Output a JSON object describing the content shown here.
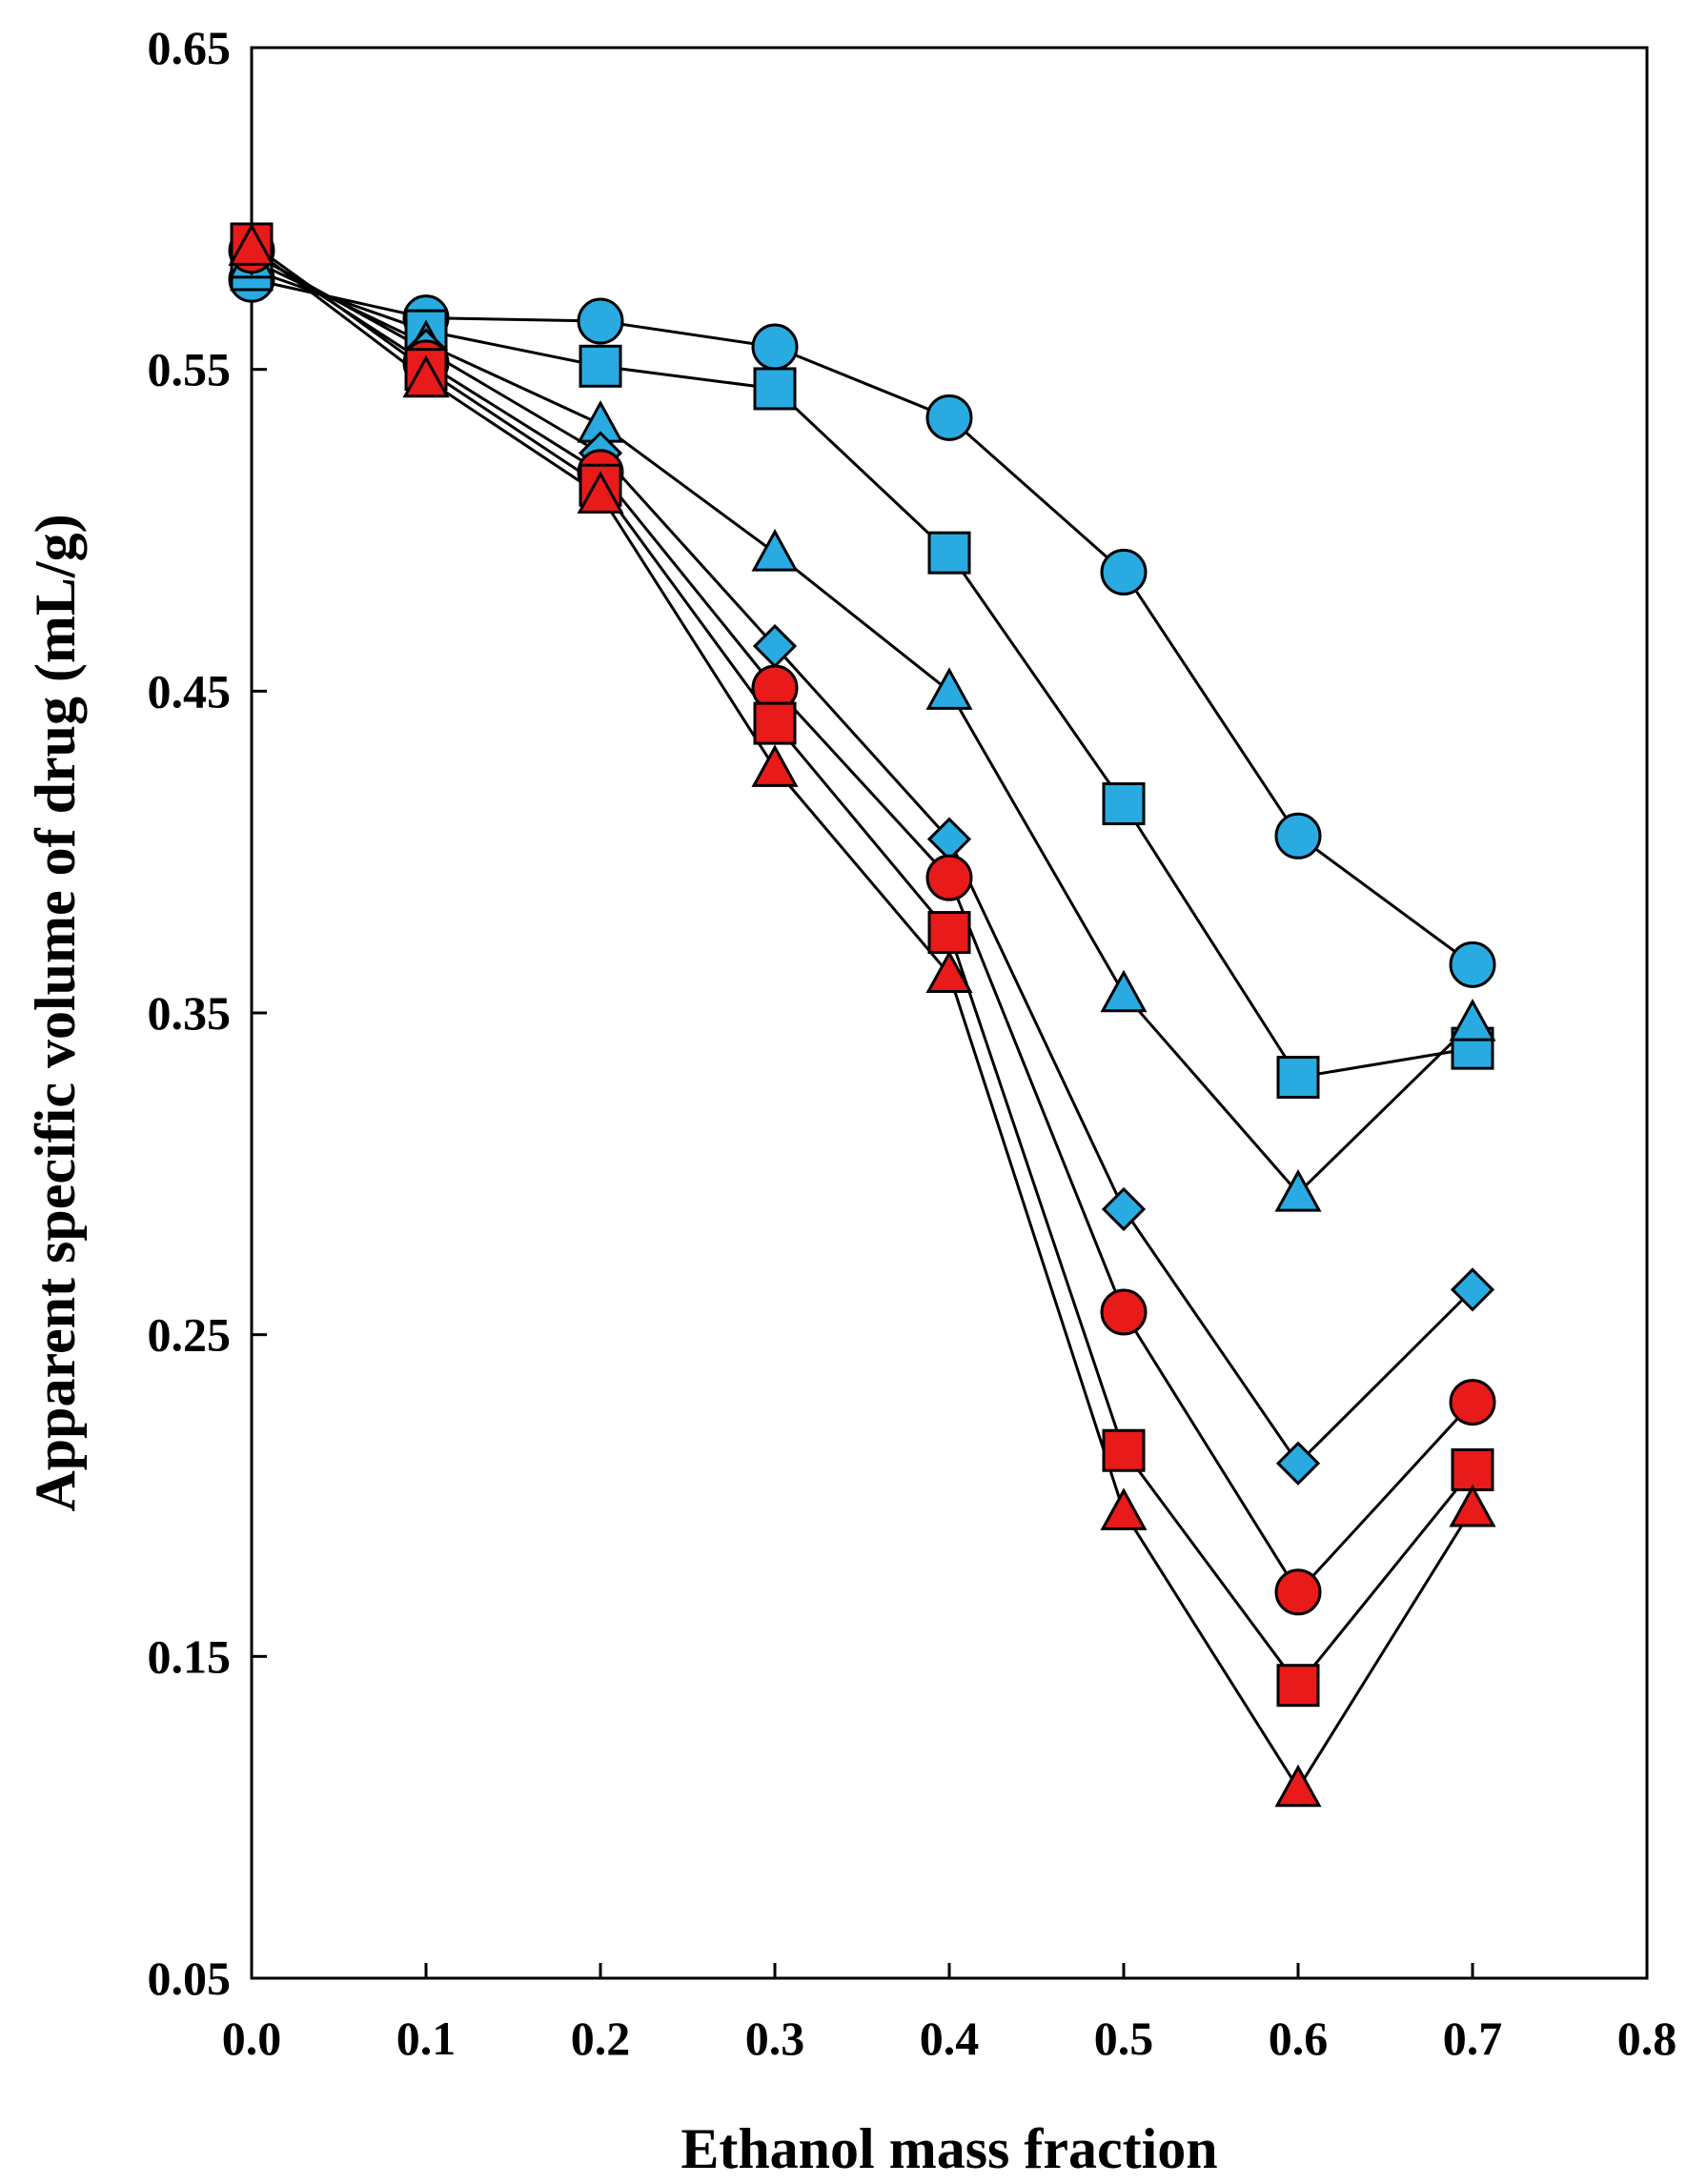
{
  "chart_data": {
    "type": "line",
    "title": "",
    "xlabel": "Ethanol mass fraction",
    "ylabel": "Apparent  specific volume of drug (mL/g)",
    "xlim": [
      0.0,
      0.8
    ],
    "ylim": [
      0.05,
      0.65
    ],
    "grid": false,
    "legend": "none",
    "x_ticks": [
      "0.0",
      "0.1",
      "0.2",
      "0.3",
      "0.4",
      "0.5",
      "0.6",
      "0.7",
      "0.8"
    ],
    "y_ticks": [
      "0.05",
      "0.15",
      "0.25",
      "0.35",
      "0.45",
      "0.55",
      "0.65"
    ],
    "x": [
      0.0,
      0.1,
      0.2,
      0.3,
      0.4,
      0.5,
      0.6,
      0.7
    ],
    "series": [
      {
        "name": "cyan-circle",
        "marker": "circle",
        "color": "#29ABE2",
        "values": [
          0.578,
          0.566,
          0.565,
          0.557,
          0.535,
          0.487,
          0.405,
          0.365
        ]
      },
      {
        "name": "cyan-square",
        "marker": "square",
        "color": "#29ABE2",
        "values": [
          0.581,
          0.562,
          0.551,
          0.544,
          0.493,
          0.415,
          0.33,
          0.339
        ]
      },
      {
        "name": "cyan-triangle",
        "marker": "triangle",
        "color": "#29ABE2",
        "values": [
          0.584,
          0.558,
          0.533,
          0.493,
          0.45,
          0.356,
          0.294,
          0.347
        ]
      },
      {
        "name": "cyan-diamond",
        "marker": "diamond",
        "color": "#29ABE2",
        "values": [
          0.586,
          0.556,
          0.524,
          0.464,
          0.404,
          0.289,
          0.21,
          0.264
        ]
      },
      {
        "name": "red-circle",
        "marker": "circle",
        "color": "#E81A1A",
        "values": [
          0.587,
          0.552,
          0.518,
          0.451,
          0.392,
          0.257,
          0.17,
          0.229
        ]
      },
      {
        "name": "red-square",
        "marker": "square",
        "color": "#E81A1A",
        "values": [
          0.589,
          0.55,
          0.514,
          0.44,
          0.375,
          0.214,
          0.141,
          0.208
        ]
      },
      {
        "name": "red-triangle",
        "marker": "triangle",
        "color": "#E81A1A",
        "values": [
          0.588,
          0.547,
          0.511,
          0.426,
          0.362,
          0.195,
          0.109,
          0.196
        ]
      }
    ]
  }
}
